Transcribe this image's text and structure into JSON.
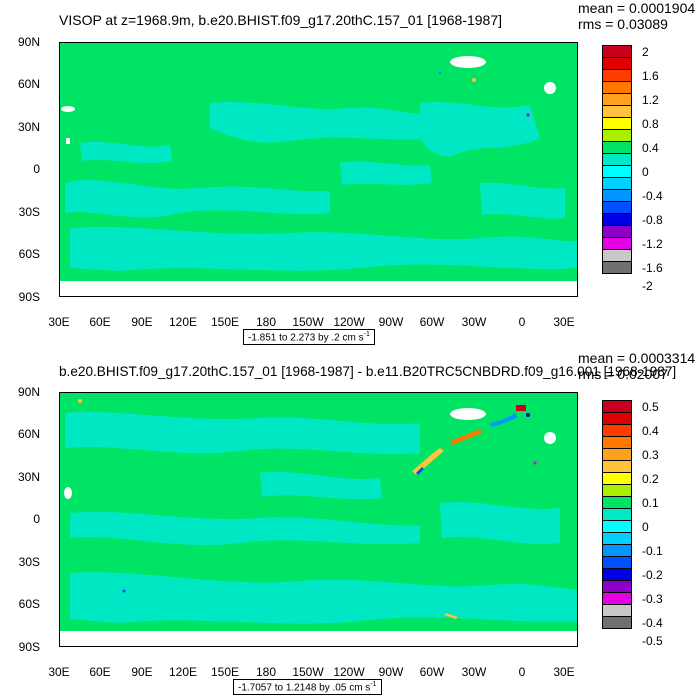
{
  "panels": [
    {
      "title": "VISOP at z=1968.9m, b.e20.BHIST.f09_g17.20thC.157_01 [1968-1987]",
      "mean": "mean = 0.0001904",
      "rms": "rms = 0.03089",
      "info": "-1.851 to 2.273 by .2 cm s",
      "info_sup": "-1",
      "y_labels": [
        "90N",
        "60N",
        "30N",
        "0",
        "30S",
        "60S",
        "90S"
      ],
      "x_labels": [
        "30E",
        "60E",
        "90E",
        "120E",
        "150E",
        "180",
        "150W",
        "120W",
        "90W",
        "60W",
        "30W",
        "0",
        "30E"
      ],
      "colorbar_labels": [
        "2",
        "1.6",
        "1.2",
        "0.8",
        "0.4",
        "0",
        "-0.4",
        "-0.8",
        "-1.2",
        "-1.6",
        "-2"
      ]
    },
    {
      "title": "b.e20.BHIST.f09_g17.20thC.157_01 [1968-1987] - b.e11.B20TRC5CNBDRD.f09_g16.001 [1968-1987]",
      "mean": "mean = 0.0003314",
      "rms": "rms = 0.02007",
      "info": "-1.7057 to 1.2148 by .05 cm s",
      "info_sup": "-1",
      "y_labels": [
        "90N",
        "60N",
        "30N",
        "0",
        "30S",
        "60S",
        "90S"
      ],
      "x_labels": [
        "30E",
        "60E",
        "90E",
        "120E",
        "150E",
        "180",
        "150W",
        "120W",
        "90W",
        "60W",
        "30W",
        "0",
        "30E"
      ],
      "colorbar_labels": [
        "0.5",
        "0.4",
        "0.3",
        "0.2",
        "0.1",
        "0",
        "-0.1",
        "-0.2",
        "-0.3",
        "-0.4",
        "-0.5"
      ]
    }
  ],
  "colorbar_colors": [
    "#c8001e",
    "#e10000",
    "#ff3c00",
    "#ff7800",
    "#ffa01e",
    "#ffc23c",
    "#ffff00",
    "#aaee00",
    "#00e466",
    "#00e8c8",
    "#00ffff",
    "#00d0ff",
    "#0096ff",
    "#0050ff",
    "#0000e6",
    "#8c00c8",
    "#e600e6",
    "#c8c8c8",
    "#707070"
  ],
  "map_colors": {
    "ocean_zero": "#00e466",
    "slight_negative": "#00e8c8",
    "land_missing": "#ffffff"
  }
}
